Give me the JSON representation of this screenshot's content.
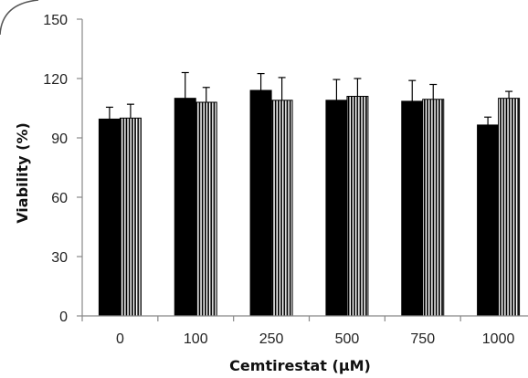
{
  "chart_data": {
    "type": "bar",
    "xlabel": "Cemtirestat (μM)",
    "ylabel": "Viability (%)",
    "categories": [
      "0",
      "100",
      "250",
      "500",
      "750",
      "1000"
    ],
    "ylim": [
      0,
      150
    ],
    "yticks": [
      "0",
      "30",
      "60",
      "90",
      "120",
      "150"
    ],
    "grid": false,
    "legend": "none",
    "series": [
      {
        "fill": "solid",
        "color": "#000000",
        "values": [
          99.5,
          110,
          114,
          109,
          108.5,
          96.5
        ],
        "errors": [
          6,
          13,
          8.5,
          10.5,
          10.5,
          4
        ]
      },
      {
        "fill": "vertical-stripes",
        "color": "#000000",
        "values": [
          100,
          108,
          109,
          111,
          109.5,
          110
        ],
        "errors": [
          7,
          7.5,
          11.5,
          9,
          7.5,
          3.5
        ]
      }
    ]
  }
}
